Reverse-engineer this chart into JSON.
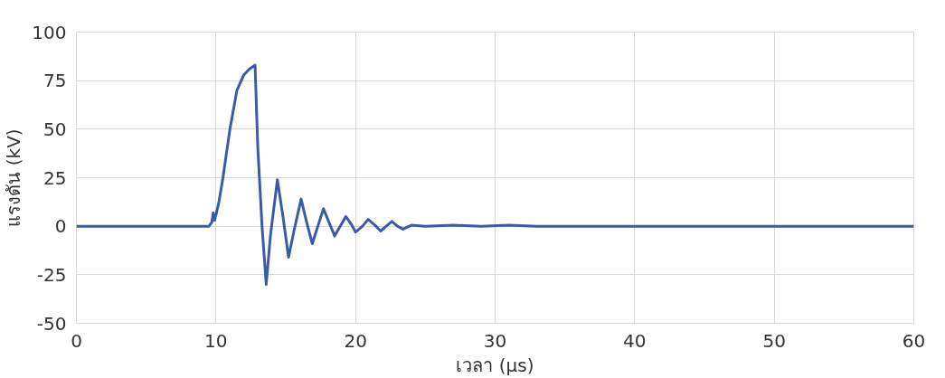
{
  "chart_data": {
    "type": "line",
    "xlabel": "เวลา (μs)",
    "ylabel": "แรงดัน (kV)",
    "xlim": [
      0,
      60
    ],
    "ylim": [
      -50,
      100
    ],
    "xticks": [
      0,
      10,
      20,
      30,
      40,
      50,
      60
    ],
    "yticks": [
      -50,
      -25,
      0,
      25,
      50,
      75,
      100
    ],
    "grid": true,
    "marker": "none",
    "line_style": "solid",
    "series": [
      {
        "color": "#3a5ba9",
        "x": [
          0,
          2,
          4,
          6,
          8,
          9.5,
          9.7,
          9.8,
          9.9,
          10.2,
          10.5,
          11.0,
          11.5,
          12.0,
          12.4,
          12.8,
          13.0,
          13.3,
          13.6,
          13.9,
          14.4,
          14.8,
          15.2,
          15.6,
          16.1,
          16.5,
          16.9,
          17.3,
          17.7,
          18.1,
          18.5,
          18.9,
          19.3,
          19.7,
          20.0,
          20.5,
          20.9,
          21.4,
          21.8,
          22.2,
          22.6,
          23.0,
          23.4,
          24,
          25,
          27,
          29,
          31,
          33,
          35,
          40,
          45,
          50,
          55,
          60
        ],
        "values": [
          0,
          0,
          0,
          0,
          0,
          0,
          2,
          7,
          3,
          12,
          25,
          50,
          70,
          78,
          81,
          83,
          40,
          0,
          -30,
          -5,
          24,
          5,
          -16,
          -2,
          14,
          2,
          -9,
          0,
          9,
          2,
          -5,
          0,
          5,
          1,
          -3,
          0,
          3.5,
          0.5,
          -2.5,
          0,
          2.5,
          0,
          -1.5,
          0.5,
          0,
          0.5,
          0,
          0.5,
          0,
          0,
          0,
          0,
          0,
          0,
          0
        ]
      }
    ]
  }
}
